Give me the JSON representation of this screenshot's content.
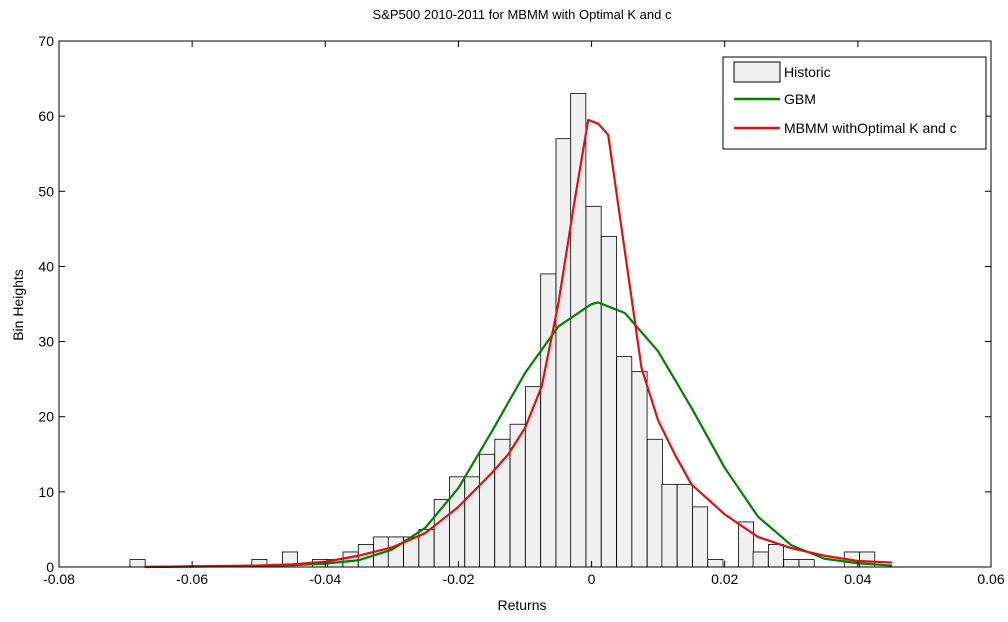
{
  "chart_data": {
    "type": "bar",
    "title": "S&P500 2010-2011 for MBMM with Optimal K and c",
    "xlabel": "Returns",
    "ylabel": "Bin Heights",
    "xlim": [
      -0.08,
      0.06
    ],
    "ylim": [
      0,
      70
    ],
    "xticks": [
      -0.08,
      -0.06,
      -0.04,
      -0.02,
      0,
      0.02,
      0.04,
      0.06
    ],
    "xtick_labels": [
      "-0.08",
      "-0.06",
      "-0.04",
      "-0.02",
      "0",
      "0.02",
      "0.04",
      "0.06"
    ],
    "yticks": [
      0,
      10,
      20,
      30,
      40,
      50,
      60,
      70
    ],
    "ytick_labels": [
      "0",
      "10",
      "20",
      "30",
      "40",
      "50",
      "60",
      "70"
    ],
    "grid": false,
    "legend_position": "top-right",
    "histogram": {
      "name": "Historic",
      "fill": "#f0f0f0",
      "edge": "#000000",
      "bin_width": 0.002283,
      "bin_centers": [
        -0.0682,
        -0.0659,
        -0.0636,
        -0.0613,
        -0.059,
        -0.0568,
        -0.0545,
        -0.0522,
        -0.0499,
        -0.0476,
        -0.0453,
        -0.0431,
        -0.0408,
        -0.0385,
        -0.0362,
        -0.0339,
        -0.0316,
        -0.0294,
        -0.0271,
        -0.0248,
        -0.0225,
        -0.0202,
        -0.0179,
        -0.0157,
        -0.0134,
        -0.0111,
        -0.0088,
        -0.0065,
        -0.0042,
        -0.002,
        0.0003,
        0.0026,
        0.0049,
        0.0072,
        0.0095,
        0.0117,
        0.014,
        0.0163,
        0.0186,
        0.0209,
        0.0232,
        0.0254,
        0.0277,
        0.03,
        0.0323,
        0.0346,
        0.0369,
        0.0391,
        0.0414,
        0.0437
      ],
      "values": [
        1,
        0,
        0,
        0,
        0,
        0,
        0,
        0,
        1,
        0,
        2,
        0,
        1,
        1,
        2,
        3,
        4,
        4,
        4,
        5,
        9,
        12,
        12,
        15,
        17,
        19,
        24,
        39,
        57,
        63,
        48,
        44,
        28,
        26,
        17,
        11,
        11,
        8,
        1,
        0,
        6,
        2,
        3,
        1,
        1,
        0,
        0,
        2,
        2,
        0
      ]
    },
    "series": [
      {
        "name": "GBM",
        "color": "#008000",
        "x": [
          -0.067,
          -0.06,
          -0.055,
          -0.05,
          -0.045,
          -0.04,
          -0.035,
          -0.03,
          -0.025,
          -0.02,
          -0.015,
          -0.01,
          -0.005,
          0,
          0.001,
          0.005,
          0.01,
          0.015,
          0.02,
          0.025,
          0.03,
          0.035,
          0.04,
          0.045
        ],
        "values": [
          0.0,
          0.05,
          0.1,
          0.15,
          0.25,
          0.45,
          0.9,
          2.3,
          5.2,
          10.5,
          18.0,
          25.8,
          32.0,
          35.0,
          35.2,
          33.8,
          28.7,
          21.2,
          13.2,
          6.7,
          2.9,
          1.1,
          0.5,
          0.2
        ]
      },
      {
        "name": "MBMM withOptimal K and c",
        "color": "#e01010",
        "x": [
          -0.067,
          -0.06,
          -0.05,
          -0.045,
          -0.04,
          -0.035,
          -0.03,
          -0.025,
          -0.02,
          -0.015,
          -0.0125,
          -0.01,
          -0.0075,
          -0.005,
          -0.0025,
          -0.0005,
          0.001,
          0.0025,
          0.005,
          0.0075,
          0.01,
          0.0125,
          0.015,
          0.02,
          0.025,
          0.03,
          0.035,
          0.04,
          0.045
        ],
        "values": [
          0.0,
          0.1,
          0.2,
          0.35,
          0.7,
          1.5,
          2.6,
          4.5,
          8.0,
          12.5,
          15.0,
          18.5,
          24.0,
          35.0,
          49.0,
          59.5,
          59.0,
          57.5,
          42.0,
          26.5,
          19.5,
          15.0,
          11.0,
          7.0,
          4.0,
          2.5,
          1.5,
          0.8,
          0.6
        ]
      }
    ]
  }
}
